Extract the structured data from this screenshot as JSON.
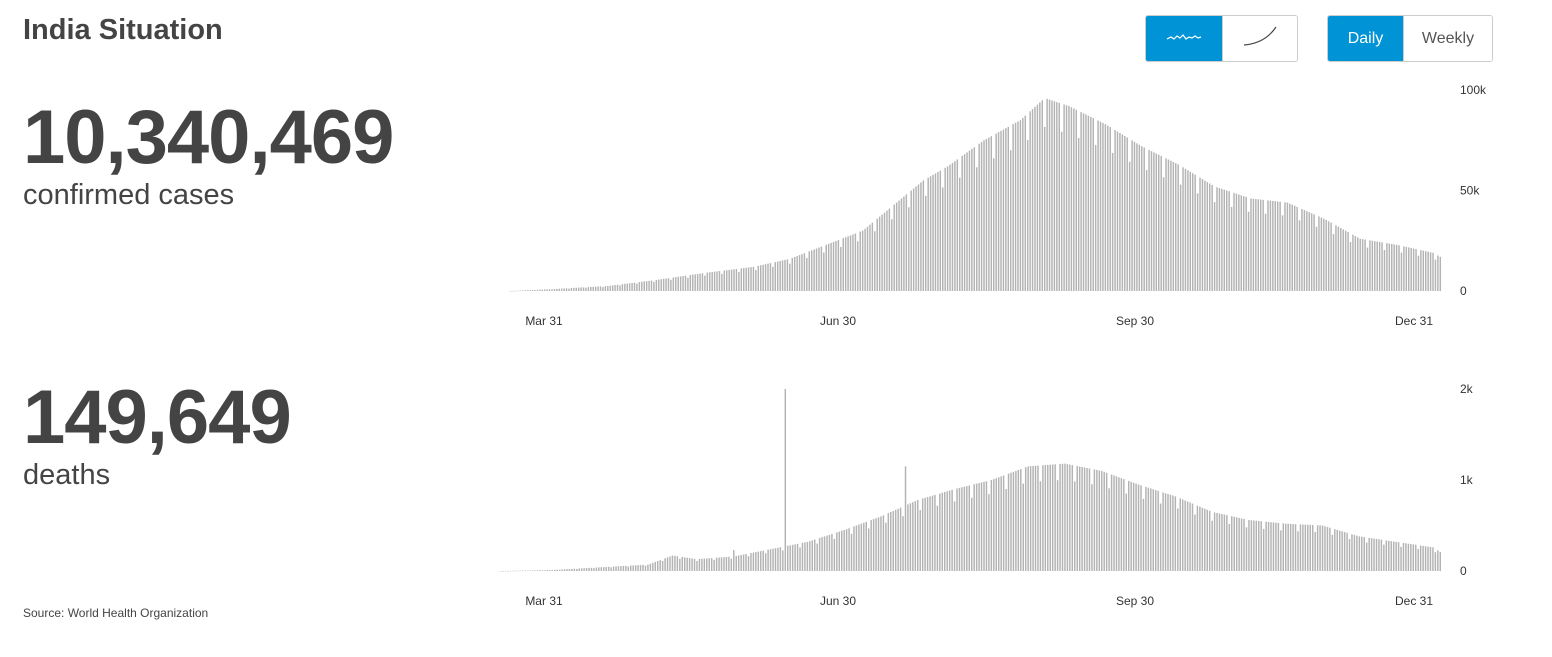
{
  "header": {
    "title": "India Situation"
  },
  "controls": {
    "shape_toggle": [
      {
        "icon": "daily-curve-icon",
        "active": true
      },
      {
        "icon": "cumulative-curve-icon",
        "active": false
      }
    ],
    "period_toggle": [
      {
        "label": "Daily",
        "active": true
      },
      {
        "label": "Weekly",
        "active": false
      }
    ]
  },
  "stats": {
    "cases": {
      "value": "10,340,469",
      "label": "confirmed cases"
    },
    "deaths": {
      "value": "149,649",
      "label": "deaths"
    }
  },
  "footer": {
    "source": "Source: World Health Organization"
  },
  "colors": {
    "accent": "#0093d5",
    "bar": "#b3b3b3",
    "text": "#444444"
  },
  "chart_data": [
    {
      "type": "bar",
      "name": "confirmed cases",
      "x_ticks": [
        "Mar 31",
        "Jun 30",
        "Sep 30",
        "Dec 31"
      ],
      "y_ticks": [
        "0",
        "50k",
        "100k"
      ],
      "ylim": [
        0,
        100000
      ],
      "xlabel": "",
      "ylabel": "",
      "anchors": [
        [
          0,
          0
        ],
        [
          18,
          1000
        ],
        [
          40,
          2500
        ],
        [
          60,
          5500
        ],
        [
          80,
          9000
        ],
        [
          100,
          12000
        ],
        [
          115,
          16000
        ],
        [
          130,
          23000
        ],
        [
          145,
          30000
        ],
        [
          160,
          45000
        ],
        [
          170,
          55000
        ],
        [
          180,
          62000
        ],
        [
          195,
          75000
        ],
        [
          210,
          85000
        ],
        [
          220,
          96000
        ],
        [
          230,
          92000
        ],
        [
          245,
          83000
        ],
        [
          260,
          72000
        ],
        [
          275,
          63000
        ],
        [
          290,
          52000
        ],
        [
          305,
          46000
        ],
        [
          320,
          44000
        ],
        [
          335,
          36000
        ],
        [
          350,
          26000
        ],
        [
          365,
          23000
        ],
        [
          380,
          19000
        ],
        [
          383,
          17000
        ]
      ],
      "dips": [
        7,
        0.85
      ]
    },
    {
      "type": "bar",
      "name": "deaths",
      "x_ticks": [
        "Mar 31",
        "Jun 30",
        "Sep 30",
        "Dec 31"
      ],
      "y_ticks": [
        "0",
        "1k",
        "2k"
      ],
      "ylim": [
        0,
        2000
      ],
      "xlabel": "",
      "ylabel": "",
      "anchors": [
        [
          0,
          0
        ],
        [
          20,
          10
        ],
        [
          40,
          40
        ],
        [
          60,
          70
        ],
        [
          70,
          170
        ],
        [
          80,
          130
        ],
        [
          95,
          160
        ],
        [
          110,
          240
        ],
        [
          125,
          320
        ],
        [
          140,
          450
        ],
        [
          155,
          600
        ],
        [
          170,
          780
        ],
        [
          185,
          900
        ],
        [
          200,
          1000
        ],
        [
          215,
          1150
        ],
        [
          230,
          1180
        ],
        [
          245,
          1100
        ],
        [
          260,
          950
        ],
        [
          275,
          820
        ],
        [
          290,
          650
        ],
        [
          305,
          560
        ],
        [
          320,
          520
        ],
        [
          335,
          500
        ],
        [
          350,
          380
        ],
        [
          365,
          320
        ],
        [
          380,
          260
        ],
        [
          383,
          210
        ]
      ],
      "spikes": [
        [
          116,
          2000
        ],
        [
          165,
          1150
        ],
        [
          95,
          230
        ]
      ],
      "dips": [
        7,
        0.85
      ]
    }
  ]
}
